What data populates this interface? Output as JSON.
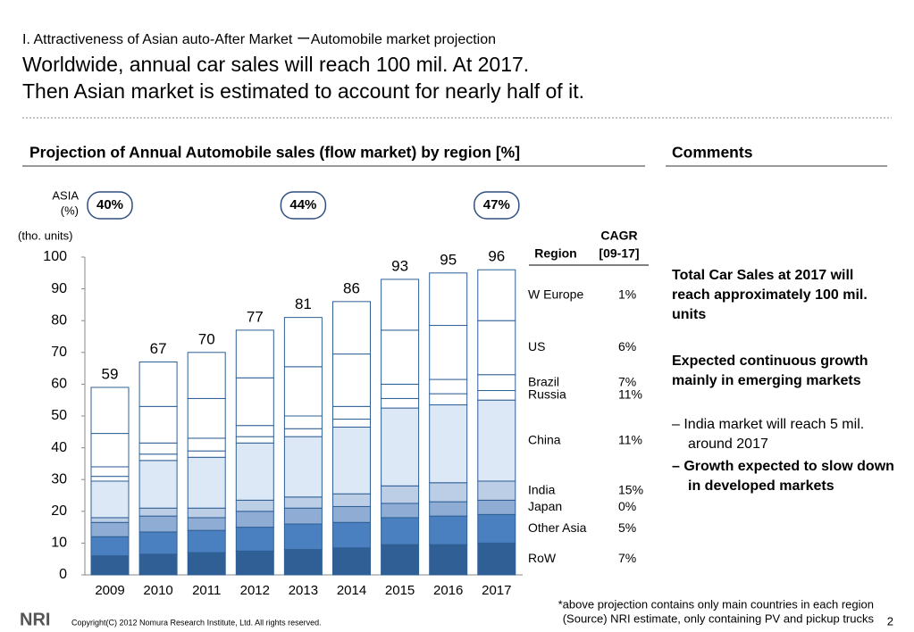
{
  "header": {
    "section": "I. Attractiveness of Asian auto-After Market ーAutomobile market projection",
    "title_line1": "Worldwide, annual car sales will reach 100 mil. At 2017.",
    "title_line2": "Then Asian market is estimated to account for nearly half of it."
  },
  "chart_data": {
    "type": "stacked_bar",
    "title": "Projection of Annual Automobile sales (flow market) by region [%]",
    "y_unit": "(tho. units)",
    "categories": [
      "2009",
      "2010",
      "2011",
      "2012",
      "2013",
      "2014",
      "2015",
      "2016",
      "2017"
    ],
    "ylim": [
      0,
      100
    ],
    "yticks": [
      0,
      10,
      20,
      30,
      40,
      50,
      60,
      70,
      80,
      90,
      100
    ],
    "totals": [
      59,
      67,
      70,
      77,
      81,
      86,
      93,
      95,
      96
    ],
    "asia_label": "ASIA",
    "asia_unit": "(%)",
    "asia_share": {
      "values": [
        40,
        null,
        null,
        null,
        44,
        null,
        null,
        null,
        47
      ],
      "value_labels": [
        "40%",
        null,
        null,
        null,
        "44%",
        null,
        null,
        null,
        "47%"
      ]
    },
    "region_header": "Region",
    "cagr_header": "CAGR",
    "cagr_period": "[09-17]",
    "series": [
      {
        "name": "W Europe",
        "cagr": "1%",
        "color": "#ffffff",
        "values": [
          14.5,
          14,
          14.5,
          15,
          15.5,
          16.5,
          16,
          16.5,
          16
        ]
      },
      {
        "name": "US",
        "cagr": "6%",
        "color": "#ffffff",
        "values": [
          10.5,
          11.5,
          12.5,
          15,
          15.5,
          16.5,
          17,
          17,
          17
        ]
      },
      {
        "name": "Brazil",
        "cagr": "7%",
        "color": "#ffffff",
        "values": [
          3,
          3.5,
          4,
          3.5,
          4,
          4,
          4.5,
          4.5,
          5
        ]
      },
      {
        "name": "Russia",
        "cagr": "11%",
        "color": "#ffffff",
        "values": [
          1.5,
          2,
          2,
          2,
          2.5,
          2.5,
          3,
          3.5,
          3
        ]
      },
      {
        "name": "China",
        "cagr": "11%",
        "color": "#dce8f5",
        "values": [
          11.5,
          15,
          16,
          18,
          19,
          21,
          24.5,
          24.5,
          25.5
        ]
      },
      {
        "name": "India",
        "cagr": "15%",
        "color": "#bccde6",
        "values": [
          1.5,
          2.5,
          3,
          3.5,
          3.5,
          4,
          5.5,
          6,
          6
        ]
      },
      {
        "name": "Japan",
        "cagr": "0%",
        "color": "#8eacd4",
        "values": [
          4.5,
          5,
          4,
          5,
          5,
          5,
          4.5,
          4.5,
          4.5
        ]
      },
      {
        "name": "Other Asia",
        "cagr": "5%",
        "color": "#4a80c0",
        "values": [
          6,
          7,
          7,
          7.5,
          8,
          8,
          8.5,
          9,
          9
        ]
      },
      {
        "name": "RoW",
        "cagr": "7%",
        "color": "#2f5f95",
        "values": [
          6,
          6.5,
          7,
          7.5,
          8,
          8.5,
          9.5,
          9.5,
          10
        ]
      }
    ]
  },
  "comments": {
    "title": "Comments",
    "point1": "Total Car Sales at 2017 will reach approximately 100 mil. units",
    "point2": "Expected continuous growth mainly in emerging markets",
    "sub1": "India market will reach 5 mil. around 2017",
    "sub2": "Growth expected to slow down in developed markets"
  },
  "footer": {
    "note1": "*above projection contains only main countries in each region",
    "note2": "(Source) NRI estimate, only containing PV and pickup trucks",
    "logo": "NRI",
    "copyright": "Copyright(C) 2012 Nomura Research Institute, Ltd. All rights reserved.",
    "page": "2"
  }
}
